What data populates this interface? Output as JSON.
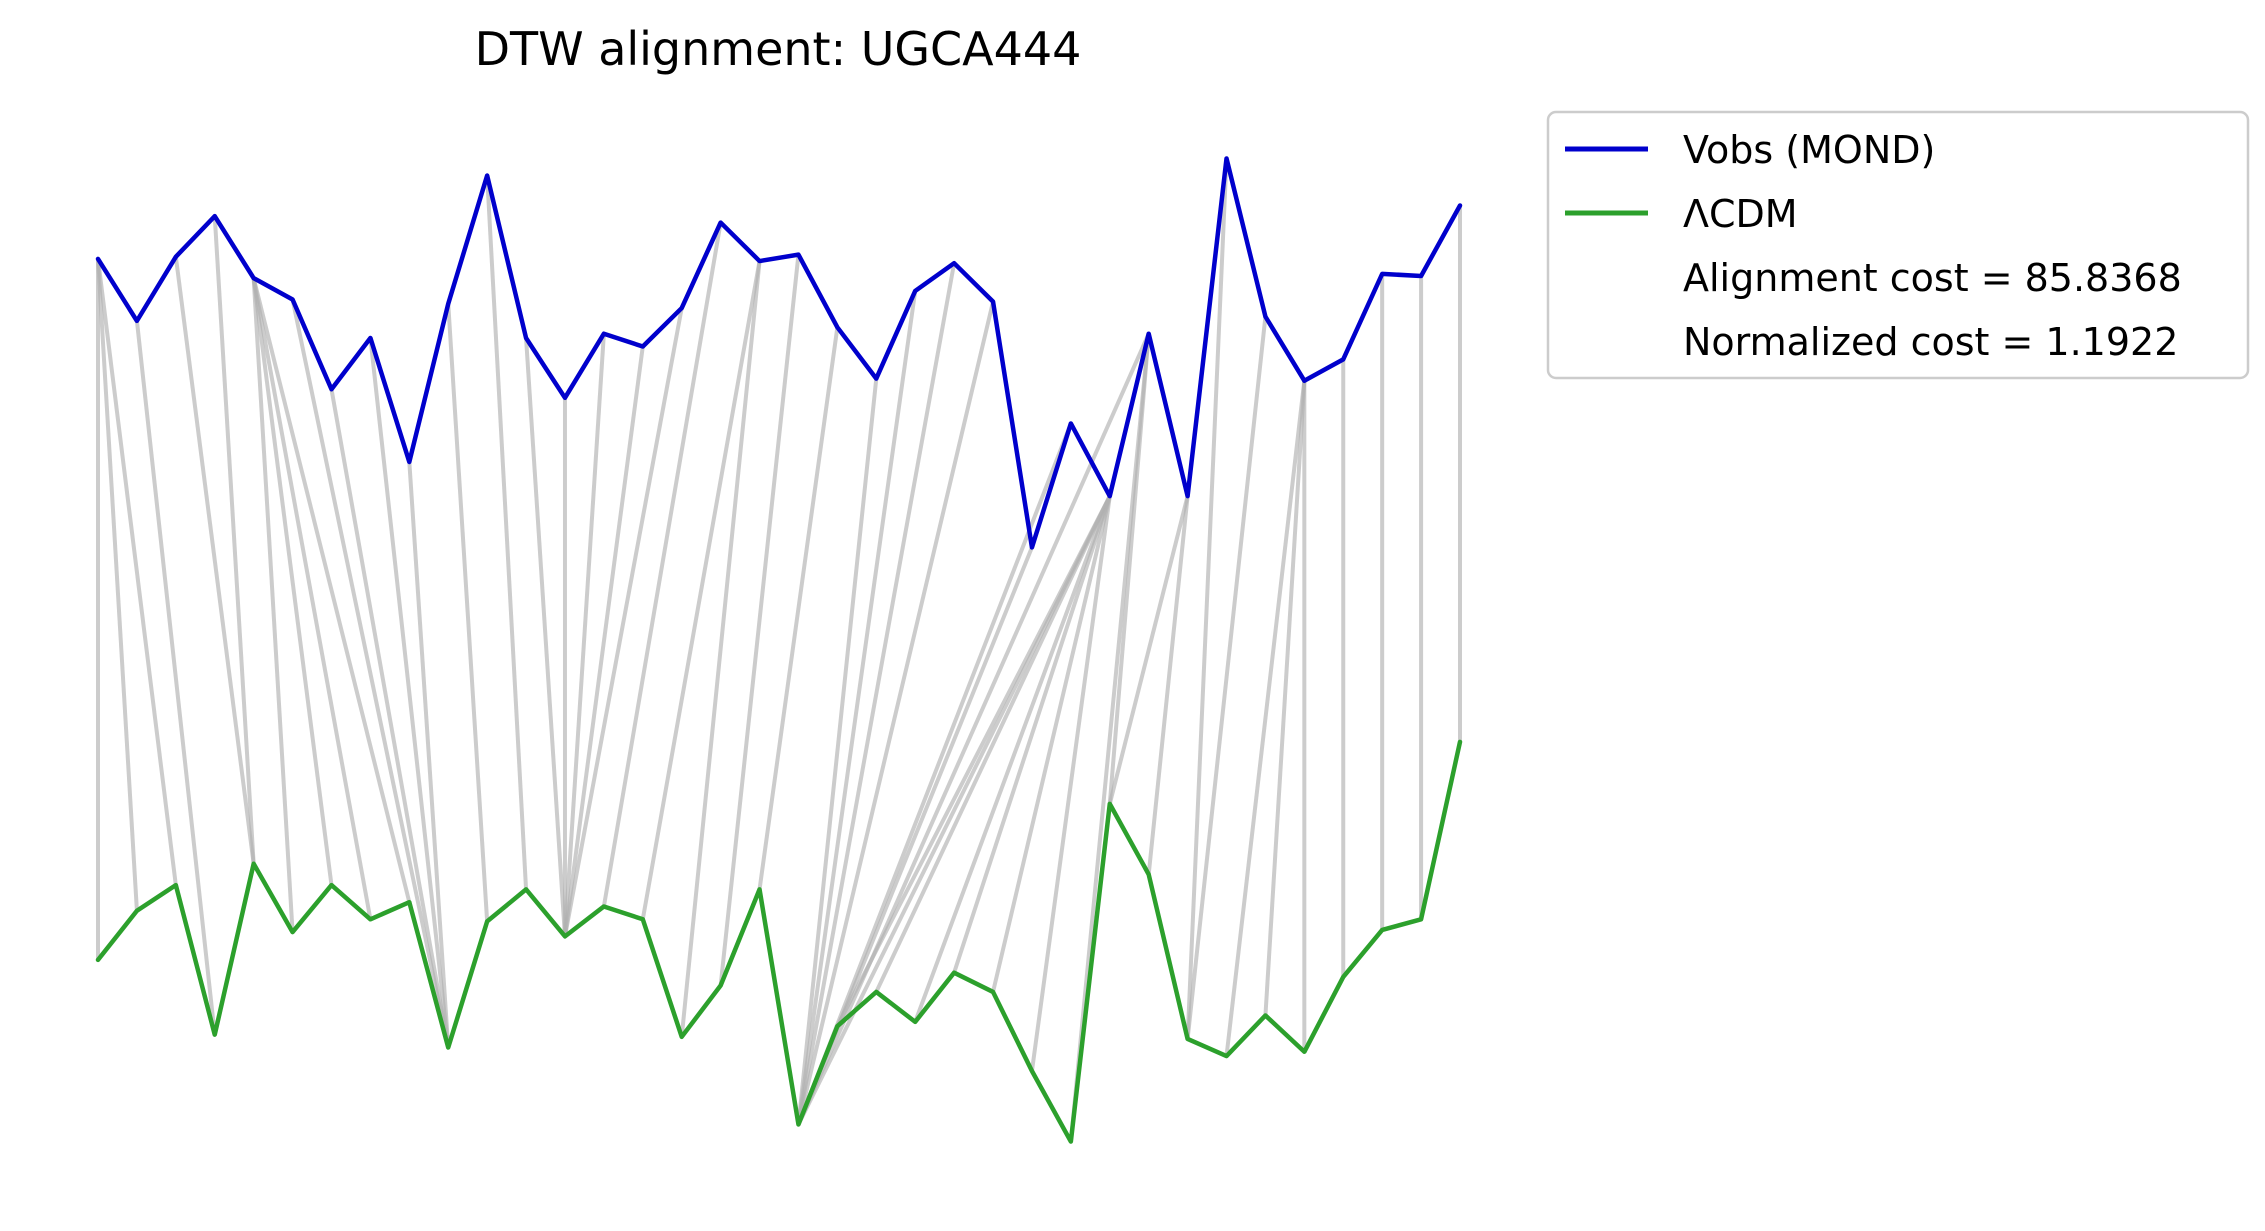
{
  "chart_data": {
    "type": "line",
    "title": "DTW alignment: UGCA444",
    "xlabel": "",
    "ylabel": "",
    "axes_visible": false,
    "grid": false,
    "legend_position": "outside-top-right",
    "x": [
      0,
      1,
      2,
      3,
      4,
      5,
      6,
      7,
      8,
      9,
      10,
      11,
      12,
      13,
      14,
      15,
      16,
      17,
      18,
      19,
      20,
      21,
      22,
      23,
      24,
      25,
      26,
      27,
      28,
      29,
      30,
      31,
      32,
      33,
      34,
      35
    ],
    "series": [
      {
        "name": "Vobs (MOND)",
        "color": "#0000cc",
        "values": [
          8.25,
          6.8,
          8.3,
          9.25,
          7.8,
          7.3,
          5.2,
          6.4,
          3.5,
          7.2,
          10.2,
          6.4,
          5.0,
          6.5,
          6.2,
          7.1,
          9.1,
          8.2,
          8.35,
          6.65,
          5.45,
          7.5,
          8.15,
          7.25,
          1.5,
          4.4,
          2.7,
          6.5,
          2.7,
          10.6,
          6.9,
          5.4,
          5.9,
          7.9,
          7.85,
          9.5
        ]
      },
      {
        "name": "ΛCDM",
        "color": "#2ca02c",
        "values": [
          -8.15,
          -7.0,
          -6.4,
          -9.9,
          -5.9,
          -7.5,
          -6.4,
          -7.2,
          -6.8,
          -10.2,
          -7.25,
          -6.5,
          -7.6,
          -6.9,
          -7.2,
          -9.95,
          -8.75,
          -6.5,
          -12.0,
          -9.7,
          -8.9,
          -9.6,
          -8.45,
          -8.9,
          -10.75,
          -12.4,
          -4.5,
          -6.15,
          -10.0,
          -10.4,
          -9.45,
          -10.3,
          -8.55,
          -7.45,
          -7.2,
          -3.05
        ]
      }
    ],
    "alignment_pairs": [
      [
        0,
        0
      ],
      [
        0,
        1
      ],
      [
        0,
        2
      ],
      [
        1,
        3
      ],
      [
        2,
        4
      ],
      [
        3,
        4
      ],
      [
        4,
        5
      ],
      [
        4,
        6
      ],
      [
        4,
        7
      ],
      [
        4,
        8
      ],
      [
        5,
        9
      ],
      [
        6,
        9
      ],
      [
        7,
        9
      ],
      [
        8,
        9
      ],
      [
        9,
        10
      ],
      [
        10,
        11
      ],
      [
        11,
        12
      ],
      [
        12,
        12
      ],
      [
        13,
        12
      ],
      [
        14,
        12
      ],
      [
        15,
        12
      ],
      [
        16,
        13
      ],
      [
        17,
        14
      ],
      [
        17,
        15
      ],
      [
        18,
        16
      ],
      [
        19,
        17
      ],
      [
        20,
        18
      ],
      [
        21,
        18
      ],
      [
        22,
        18
      ],
      [
        23,
        18
      ],
      [
        24,
        18
      ],
      [
        25,
        18
      ],
      [
        26,
        18
      ],
      [
        27,
        18
      ],
      [
        26,
        19
      ],
      [
        26,
        20
      ],
      [
        26,
        21
      ],
      [
        26,
        22
      ],
      [
        26,
        23
      ],
      [
        26,
        24
      ],
      [
        27,
        25
      ],
      [
        27,
        26
      ],
      [
        28,
        26
      ],
      [
        28,
        27
      ],
      [
        29,
        28
      ],
      [
        30,
        28
      ],
      [
        31,
        29
      ],
      [
        31,
        30
      ],
      [
        31,
        31
      ],
      [
        32,
        32
      ],
      [
        33,
        33
      ],
      [
        34,
        34
      ],
      [
        35,
        35
      ]
    ],
    "alignment_line_color": "#b0b0b0",
    "legend": {
      "entries": [
        {
          "label": "Vobs (MOND)",
          "color": "#0000cc"
        },
        {
          "label": "ΛCDM",
          "color": "#2ca02c"
        }
      ],
      "annotations": [
        "Alignment cost = 85.8368",
        "Normalized cost = 1.1922"
      ]
    }
  }
}
